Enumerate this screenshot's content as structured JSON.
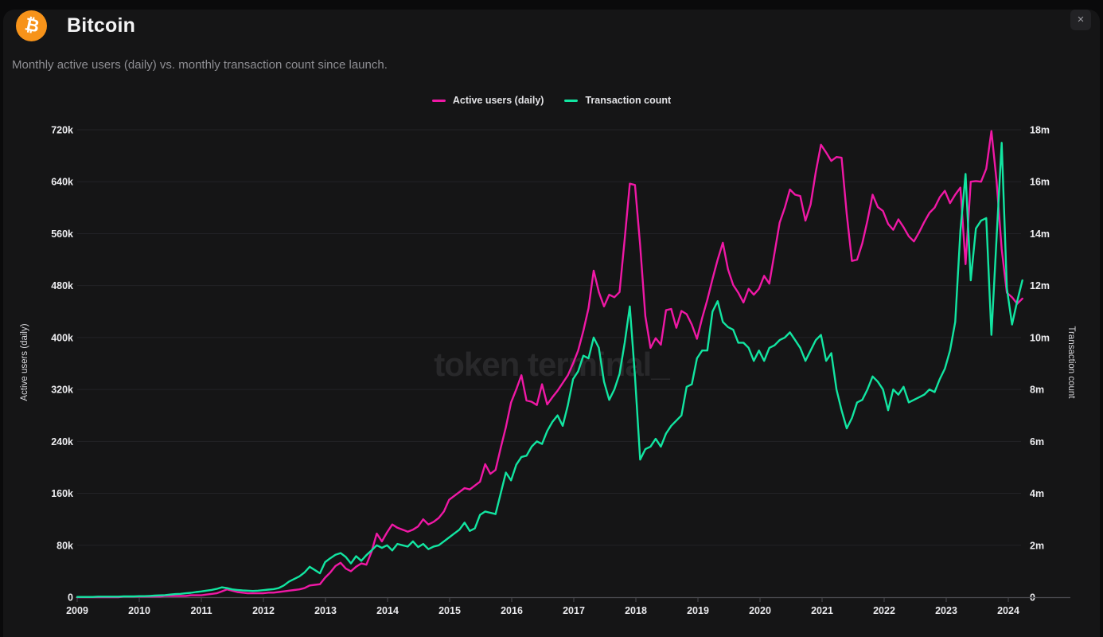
{
  "header": {
    "title": "Bitcoin",
    "logo_symbol": "₿"
  },
  "close_button": {
    "label": "×"
  },
  "subtitle": "Monthly active users (daily) vs. monthly transaction count since launch.",
  "watermark": "token terminal_",
  "legend": [
    {
      "label": "Active users (daily)",
      "color": "#ef18a5"
    },
    {
      "label": "Transaction count",
      "color": "#12e5a1"
    }
  ],
  "colors": {
    "page_bg": "#0a0a0b",
    "card_bg": "#151516",
    "gridline": "#232327",
    "axis_line": "#4b4b50",
    "tick_text": "#ededf0",
    "active_users": "#ef18a5",
    "transaction_count": "#12e5a1",
    "bitcoin_orange": "#f7931a"
  },
  "chart_data": {
    "type": "line",
    "title": "Monthly active users (daily) vs. monthly transaction count since launch",
    "x_unit": "month",
    "x_start": "2009-01",
    "x_end": "2024-04",
    "x_tick_labels": [
      "2009",
      "2010",
      "2011",
      "2012",
      "2013",
      "2014",
      "2015",
      "2016",
      "2017",
      "2018",
      "2019",
      "2020",
      "2021",
      "2022",
      "2023",
      "2024"
    ],
    "grid": "horizontal",
    "legend_position": "top-center",
    "left_axis": {
      "title": "Active users (daily)",
      "min": 0,
      "max": 720000,
      "tick_step": 80000,
      "tick_labels": [
        "0",
        "80k",
        "160k",
        "240k",
        "320k",
        "400k",
        "480k",
        "560k",
        "640k",
        "720k"
      ]
    },
    "right_axis": {
      "title": "Transaction count",
      "min": 0,
      "max": 18000000,
      "tick_step": 2000000,
      "tick_labels": [
        "0",
        "2m",
        "4m",
        "6m",
        "8m",
        "10m",
        "12m",
        "14m",
        "16m",
        "18m"
      ]
    },
    "series": [
      {
        "name": "Active users (daily)",
        "axis": "left",
        "unit": "thousands",
        "color": "#ef18a5",
        "values": [
          0,
          0,
          0,
          0,
          0,
          0,
          0,
          0,
          0,
          1,
          1,
          1,
          1,
          1,
          1,
          1,
          1,
          2,
          2,
          2,
          2,
          2,
          3,
          3,
          3,
          4,
          5,
          6,
          9,
          12,
          10,
          8,
          7,
          6,
          6,
          6,
          6,
          7,
          7,
          8,
          9,
          10,
          11,
          12,
          14,
          18,
          19,
          20,
          30,
          38,
          48,
          53,
          44,
          40,
          47,
          52,
          50,
          70,
          98,
          86,
          100,
          112,
          107,
          104,
          101,
          104,
          109,
          120,
          112,
          116,
          122,
          132,
          150,
          156,
          162,
          168,
          166,
          172,
          178,
          205,
          190,
          196,
          230,
          262,
          300,
          320,
          342,
          303,
          301,
          296,
          328,
          297,
          308,
          318,
          330,
          342,
          360,
          380,
          410,
          445,
          503,
          470,
          448,
          466,
          462,
          470,
          552,
          637,
          635,
          542,
          433,
          384,
          399,
          389,
          442,
          444,
          415,
          441,
          436,
          420,
          398,
          430,
          458,
          490,
          520,
          546,
          505,
          481,
          469,
          454,
          475,
          466,
          475,
          495,
          483,
          530,
          577,
          600,
          628,
          620,
          618,
          580,
          605,
          655,
          697,
          685,
          672,
          678,
          677,
          590,
          518,
          520,
          545,
          580,
          620,
          601,
          595,
          575,
          566,
          582,
          570,
          556,
          548,
          562,
          578,
          592,
          600,
          616,
          626,
          607,
          620,
          631,
          513,
          640,
          641,
          640,
          660,
          718,
          642,
          536,
          469,
          462,
          452,
          460
        ]
      },
      {
        "name": "Transaction count",
        "axis": "right",
        "unit": "millions",
        "color": "#12e5a1",
        "values": [
          0.01,
          0.01,
          0.01,
          0.01,
          0.02,
          0.02,
          0.02,
          0.02,
          0.02,
          0.03,
          0.03,
          0.03,
          0.04,
          0.04,
          0.05,
          0.06,
          0.07,
          0.08,
          0.1,
          0.12,
          0.13,
          0.15,
          0.17,
          0.2,
          0.22,
          0.25,
          0.28,
          0.32,
          0.38,
          0.35,
          0.3,
          0.28,
          0.26,
          0.25,
          0.24,
          0.25,
          0.27,
          0.29,
          0.31,
          0.35,
          0.45,
          0.6,
          0.7,
          0.8,
          0.95,
          1.17,
          1.05,
          0.92,
          1.35,
          1.5,
          1.63,
          1.7,
          1.55,
          1.3,
          1.58,
          1.4,
          1.62,
          1.8,
          2.0,
          1.9,
          2.0,
          1.8,
          2.05,
          2.0,
          1.95,
          2.15,
          1.93,
          2.05,
          1.85,
          1.95,
          2.0,
          2.15,
          2.3,
          2.45,
          2.6,
          2.87,
          2.55,
          2.65,
          3.17,
          3.3,
          3.25,
          3.2,
          4.0,
          4.8,
          4.5,
          5.1,
          5.4,
          5.45,
          5.8,
          6.0,
          5.9,
          6.4,
          6.75,
          7.0,
          6.6,
          7.4,
          8.4,
          8.7,
          9.3,
          9.2,
          10.0,
          9.6,
          8.3,
          7.6,
          8.0,
          8.6,
          9.8,
          11.2,
          8.5,
          5.3,
          5.7,
          5.8,
          6.1,
          5.8,
          6.3,
          6.6,
          6.8,
          7.0,
          8.1,
          8.2,
          9.2,
          9.5,
          9.5,
          11.0,
          11.4,
          10.6,
          10.4,
          10.3,
          9.8,
          9.8,
          9.6,
          9.1,
          9.5,
          9.1,
          9.6,
          9.7,
          9.9,
          10.0,
          10.2,
          9.9,
          9.6,
          9.1,
          9.5,
          9.9,
          10.1,
          9.1,
          9.4,
          8.0,
          7.2,
          6.5,
          6.9,
          7.5,
          7.6,
          8.0,
          8.5,
          8.3,
          8.0,
          7.2,
          8.0,
          7.8,
          8.1,
          7.5,
          7.6,
          7.7,
          7.8,
          8.0,
          7.9,
          8.4,
          8.8,
          9.5,
          10.6,
          14.1,
          16.3,
          12.2,
          14.2,
          14.5,
          14.6,
          10.1,
          13.8,
          17.5,
          11.9,
          10.5,
          11.4,
          12.2
        ]
      }
    ]
  }
}
